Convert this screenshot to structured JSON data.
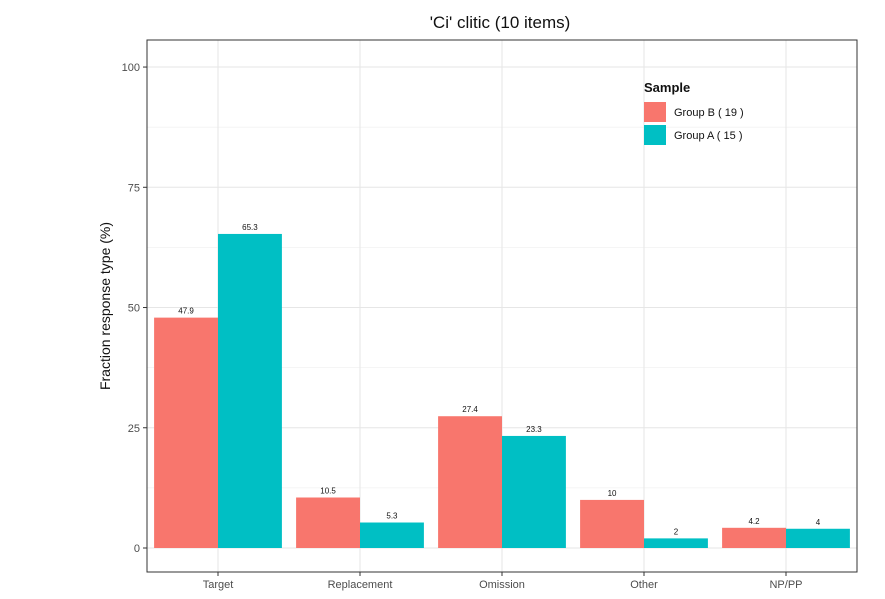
{
  "chart_data": {
    "type": "bar",
    "title": "'Ci' clitic (10 items)",
    "xlabel": "",
    "ylabel": "Fraction response type (%)",
    "ylim": [
      0,
      105
    ],
    "yticks": [
      0,
      25,
      50,
      75,
      100
    ],
    "grid": true,
    "legend": {
      "title": "Sample",
      "placement": "top-right"
    },
    "categories": [
      "Target",
      "Replacement",
      "Omission",
      "Other",
      "NP/PP"
    ],
    "series": [
      {
        "name": "Group B ( 19 )",
        "color": "#F8766D",
        "values": [
          47.9,
          10.5,
          27.4,
          10,
          4.2
        ],
        "labels": [
          "47.9",
          "10.5",
          "27.4",
          "10",
          "4.2"
        ]
      },
      {
        "name": "Group A ( 15 )",
        "color": "#00BFC4",
        "values": [
          65.3,
          5.3,
          23.3,
          2,
          4
        ],
        "labels": [
          "65.3",
          "5.3",
          "23.3",
          "2",
          "4"
        ]
      }
    ]
  }
}
